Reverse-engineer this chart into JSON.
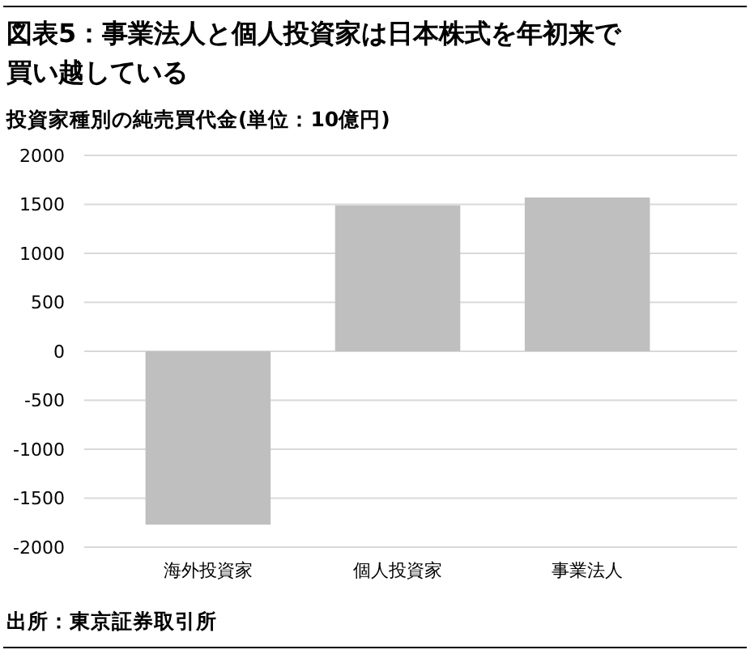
{
  "chart_data": {
    "type": "bar",
    "title": "図表5：事業法人と個人投資家は日本株式を年初来で買い越している",
    "subtitle": "投資家種別の純売買代金(単位：10億円)",
    "categories": [
      "海外投資家",
      "個人投資家",
      "事業法人"
    ],
    "values": [
      -1770,
      1490,
      1570
    ],
    "color": "#bfbfbf",
    "ylim": [
      -2000,
      2000
    ],
    "yticks": [
      -2000,
      -1500,
      -1000,
      -500,
      0,
      500,
      1000,
      1500,
      2000
    ],
    "grid": "y",
    "annotations": [
      "出所：東京証券取引所"
    ]
  }
}
